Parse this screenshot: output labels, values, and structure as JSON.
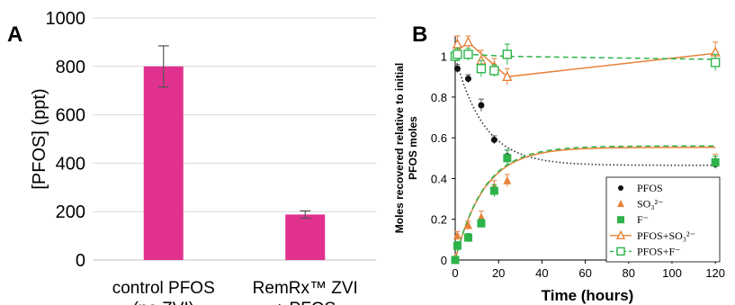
{
  "chart_data": [
    {
      "type": "bar",
      "panel_label": "A",
      "categories": [
        [
          "control PFOS",
          "(no ZVI)"
        ],
        [
          "RemRx™ ZVI",
          "+ PFOS"
        ]
      ],
      "values": [
        800,
        188
      ],
      "errors": [
        85,
        15
      ],
      "ylabel": "[PFOS] (ppt)",
      "ylim": [
        0,
        1000
      ],
      "yticks": [
        0,
        200,
        400,
        600,
        800,
        1000
      ],
      "bar_color": "#e0318f",
      "grid": true
    },
    {
      "type": "scatter",
      "panel_label": "B",
      "xlabel": "Time (hours)",
      "ylabel": [
        "Moles recovered relative to initial",
        "PFOS moles"
      ],
      "xlim": [
        0,
        122
      ],
      "ylim": [
        0,
        1.1
      ],
      "xticks": [
        0,
        20,
        40,
        60,
        80,
        100,
        120
      ],
      "yticks": [
        0,
        0.2,
        0.4,
        0.6,
        0.8,
        1
      ],
      "legend_position": "bottom-right",
      "series": [
        {
          "name": "PFOS",
          "marker": "circle",
          "color": "#111111",
          "x": [
            0,
            1,
            6,
            12,
            18,
            24,
            120
          ],
          "y": [
            1.0,
            0.94,
            0.89,
            0.76,
            0.59,
            0.51,
            0.47
          ],
          "err": [
            0,
            0.02,
            0.02,
            0.03,
            0.02,
            0.03,
            0.02
          ]
        },
        {
          "name": "SO₃²⁻",
          "marker": "triangle",
          "color": "#e8823a",
          "x": [
            0,
            1,
            6,
            12,
            18,
            24,
            120
          ],
          "y": [
            0.01,
            0.12,
            0.17,
            0.21,
            0.36,
            0.39,
            0.49
          ],
          "err": [
            0,
            0.02,
            0.02,
            0.03,
            0.03,
            0.03,
            0.03
          ]
        },
        {
          "name": "F⁻",
          "marker": "square",
          "color": "#2db34a",
          "x": [
            0,
            1,
            6,
            12,
            18,
            24,
            120
          ],
          "y": [
            0.0,
            0.07,
            0.11,
            0.18,
            0.34,
            0.5,
            0.48
          ],
          "err": [
            0,
            0.02,
            0.02,
            0.02,
            0.03,
            0.04,
            0.03
          ]
        },
        {
          "name": "PFOS+SO₃²⁻",
          "marker": "open-triangle",
          "line": "solid",
          "color": "#e8823a",
          "x": [
            0,
            1,
            6,
            12,
            18,
            24,
            120
          ],
          "y": [
            1.01,
            1.06,
            1.07,
            0.98,
            0.95,
            0.9,
            1.02
          ],
          "err": [
            0.03,
            0.04,
            0.03,
            0.05,
            0.04,
            0.04,
            0.05
          ]
        },
        {
          "name": "PFOS+F⁻",
          "marker": "open-square",
          "line": "dashed",
          "color": "#2db34a",
          "x": [
            0,
            1,
            6,
            12,
            18,
            24,
            120
          ],
          "y": [
            1.0,
            1.01,
            1.01,
            0.94,
            0.93,
            1.01,
            0.97
          ],
          "err": [
            0.02,
            0.03,
            0.03,
            0.04,
            0.03,
            0.05,
            0.04
          ]
        }
      ],
      "fits": [
        {
          "of": "PFOS",
          "style": "dotted",
          "color": "#333333",
          "start": 1.0,
          "end": 0.465,
          "rate": 0.075
        },
        {
          "of": "SO₃²⁻",
          "style": "solid",
          "color": "#e8823a",
          "start": 0.0,
          "end": 0.553,
          "rate": 0.075
        },
        {
          "of": "F⁻",
          "style": "dashed",
          "color": "#2db34a",
          "start": 0.0,
          "end": 0.56,
          "rate": 0.075
        },
        {
          "of": "PFOS+SO₃²⁻",
          "style": "solid",
          "color": "#e8823a",
          "points": [
            [
              0,
              1.02
            ],
            [
              6,
              1.07
            ],
            [
              24,
              0.9
            ],
            [
              120,
              1.015
            ]
          ]
        },
        {
          "of": "PFOS+F⁻",
          "style": "dashed",
          "color": "#2db34a",
          "points": [
            [
              0,
              1.0
            ],
            [
              6,
              1.01
            ],
            [
              24,
              1.0
            ],
            [
              120,
              0.985
            ]
          ]
        }
      ]
    }
  ]
}
